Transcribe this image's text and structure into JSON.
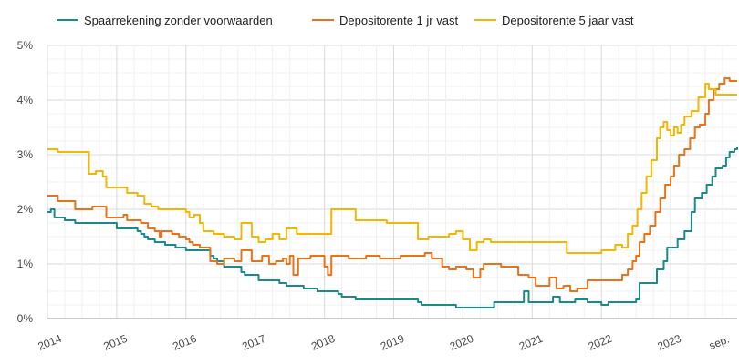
{
  "chart_data": {
    "type": "line",
    "title": "",
    "xlabel": "",
    "ylabel": "",
    "ylim": [
      0,
      5
    ],
    "yticks": [
      "0%",
      "1%",
      "2%",
      "3%",
      "4%",
      "5%"
    ],
    "xtick_labels": [
      "2014",
      "2015",
      "2016",
      "2017",
      "2018",
      "2019",
      "2020",
      "2021",
      "2022",
      "2023",
      "sep."
    ],
    "grid": true,
    "legend_position": "top",
    "series": [
      {
        "name": "Spaarrekening zonder  voorwaarden",
        "color": "#1a8a8a",
        "points": [
          [
            2014.0,
            1.95
          ],
          [
            2014.05,
            2.0
          ],
          [
            2014.1,
            1.85
          ],
          [
            2014.25,
            1.8
          ],
          [
            2014.4,
            1.75
          ],
          [
            2014.8,
            1.75
          ],
          [
            2015.0,
            1.65
          ],
          [
            2015.2,
            1.65
          ],
          [
            2015.3,
            1.6
          ],
          [
            2015.35,
            1.55
          ],
          [
            2015.4,
            1.5
          ],
          [
            2015.45,
            1.45
          ],
          [
            2015.55,
            1.4
          ],
          [
            2015.7,
            1.35
          ],
          [
            2015.85,
            1.3
          ],
          [
            2016.0,
            1.25
          ],
          [
            2016.25,
            1.25
          ],
          [
            2016.35,
            1.15
          ],
          [
            2016.4,
            1.1
          ],
          [
            2016.45,
            1.05
          ],
          [
            2016.55,
            0.95
          ],
          [
            2016.75,
            0.95
          ],
          [
            2016.8,
            0.85
          ],
          [
            2016.85,
            0.8
          ],
          [
            2017.0,
            0.8
          ],
          [
            2017.05,
            0.7
          ],
          [
            2017.3,
            0.7
          ],
          [
            2017.35,
            0.65
          ],
          [
            2017.45,
            0.6
          ],
          [
            2017.7,
            0.55
          ],
          [
            2017.8,
            0.55
          ],
          [
            2017.9,
            0.5
          ],
          [
            2018.1,
            0.5
          ],
          [
            2018.2,
            0.45
          ],
          [
            2018.25,
            0.4
          ],
          [
            2018.45,
            0.35
          ],
          [
            2018.7,
            0.35
          ],
          [
            2019.0,
            0.35
          ],
          [
            2019.35,
            0.3
          ],
          [
            2019.4,
            0.25
          ],
          [
            2019.8,
            0.25
          ],
          [
            2019.9,
            0.2
          ],
          [
            2020.4,
            0.2
          ],
          [
            2020.45,
            0.3
          ],
          [
            2020.8,
            0.3
          ],
          [
            2020.88,
            0.5
          ],
          [
            2020.95,
            0.3
          ],
          [
            2021.2,
            0.3
          ],
          [
            2021.3,
            0.4
          ],
          [
            2021.4,
            0.3
          ],
          [
            2021.55,
            0.3
          ],
          [
            2021.62,
            0.35
          ],
          [
            2021.8,
            0.3
          ],
          [
            2022.0,
            0.25
          ],
          [
            2022.1,
            0.3
          ],
          [
            2022.3,
            0.3
          ],
          [
            2022.5,
            0.35
          ],
          [
            2022.55,
            0.65
          ],
          [
            2022.75,
            0.65
          ],
          [
            2022.8,
            0.9
          ],
          [
            2022.9,
            1.05
          ],
          [
            2022.95,
            1.3
          ],
          [
            2023.05,
            1.3
          ],
          [
            2023.1,
            1.45
          ],
          [
            2023.2,
            1.6
          ],
          [
            2023.3,
            1.95
          ],
          [
            2023.35,
            2.2
          ],
          [
            2023.45,
            2.3
          ],
          [
            2023.52,
            2.45
          ],
          [
            2023.6,
            2.6
          ],
          [
            2023.65,
            2.75
          ],
          [
            2023.75,
            2.8
          ],
          [
            2023.8,
            2.95
          ],
          [
            2023.85,
            3.05
          ],
          [
            2023.92,
            3.1
          ],
          [
            2023.96,
            3.15
          ]
        ]
      },
      {
        "name": "Depositorente 1 jr vast",
        "color": "#e8731a",
        "points": [
          [
            2014.0,
            2.25
          ],
          [
            2014.1,
            2.25
          ],
          [
            2014.15,
            2.15
          ],
          [
            2014.35,
            2.15
          ],
          [
            2014.4,
            2.0
          ],
          [
            2014.55,
            2.0
          ],
          [
            2014.65,
            2.05
          ],
          [
            2014.82,
            2.05
          ],
          [
            2014.85,
            1.85
          ],
          [
            2015.05,
            1.85
          ],
          [
            2015.1,
            1.9
          ],
          [
            2015.15,
            1.8
          ],
          [
            2015.35,
            1.75
          ],
          [
            2015.45,
            1.65
          ],
          [
            2015.55,
            1.6
          ],
          [
            2015.62,
            1.5
          ],
          [
            2015.65,
            1.6
          ],
          [
            2015.8,
            1.55
          ],
          [
            2015.9,
            1.5
          ],
          [
            2016.0,
            1.45
          ],
          [
            2016.05,
            1.4
          ],
          [
            2016.1,
            1.35
          ],
          [
            2016.2,
            1.3
          ],
          [
            2016.35,
            1.05
          ],
          [
            2016.45,
            1.0
          ],
          [
            2016.55,
            1.1
          ],
          [
            2016.7,
            1.05
          ],
          [
            2016.8,
            1.25
          ],
          [
            2016.95,
            1.05
          ],
          [
            2017.1,
            1.15
          ],
          [
            2017.2,
            1.0
          ],
          [
            2017.3,
            1.05
          ],
          [
            2017.4,
            1.1
          ],
          [
            2017.45,
            1.0
          ],
          [
            2017.5,
            1.15
          ],
          [
            2017.55,
            0.8
          ],
          [
            2017.62,
            1.1
          ],
          [
            2017.8,
            1.15
          ],
          [
            2018.0,
            0.95
          ],
          [
            2018.05,
            0.8
          ],
          [
            2018.1,
            1.15
          ],
          [
            2018.35,
            1.1
          ],
          [
            2018.6,
            1.15
          ],
          [
            2018.8,
            1.1
          ],
          [
            2019.0,
            1.1
          ],
          [
            2019.1,
            1.15
          ],
          [
            2019.45,
            1.2
          ],
          [
            2019.55,
            1.1
          ],
          [
            2019.7,
            0.95
          ],
          [
            2019.8,
            0.9
          ],
          [
            2019.9,
            0.95
          ],
          [
            2020.05,
            0.9
          ],
          [
            2020.15,
            0.75
          ],
          [
            2020.25,
            0.9
          ],
          [
            2020.3,
            1.0
          ],
          [
            2020.45,
            1.0
          ],
          [
            2020.55,
            0.95
          ],
          [
            2020.8,
            0.8
          ],
          [
            2020.95,
            0.75
          ],
          [
            2021.05,
            0.6
          ],
          [
            2021.15,
            0.6
          ],
          [
            2021.25,
            0.75
          ],
          [
            2021.35,
            0.55
          ],
          [
            2021.45,
            0.6
          ],
          [
            2021.55,
            0.5
          ],
          [
            2021.65,
            0.55
          ],
          [
            2021.8,
            0.7
          ],
          [
            2022.25,
            0.7
          ],
          [
            2022.3,
            0.8
          ],
          [
            2022.38,
            0.9
          ],
          [
            2022.45,
            1.05
          ],
          [
            2022.5,
            1.15
          ],
          [
            2022.55,
            1.4
          ],
          [
            2022.62,
            1.55
          ],
          [
            2022.7,
            1.7
          ],
          [
            2022.78,
            1.95
          ],
          [
            2022.85,
            2.2
          ],
          [
            2022.92,
            2.45
          ],
          [
            2023.0,
            2.6
          ],
          [
            2023.05,
            2.8
          ],
          [
            2023.12,
            3.0
          ],
          [
            2023.2,
            3.1
          ],
          [
            2023.28,
            3.3
          ],
          [
            2023.35,
            3.5
          ],
          [
            2023.42,
            3.55
          ],
          [
            2023.5,
            3.75
          ],
          [
            2023.55,
            4.0
          ],
          [
            2023.62,
            4.2
          ],
          [
            2023.7,
            4.3
          ],
          [
            2023.78,
            4.4
          ],
          [
            2023.85,
            4.35
          ],
          [
            2023.96,
            4.35
          ]
        ]
      },
      {
        "name": "Depositorente 5 jaar vast",
        "color": "#f2b705",
        "points": [
          [
            2014.0,
            3.1
          ],
          [
            2014.1,
            3.1
          ],
          [
            2014.15,
            3.05
          ],
          [
            2014.35,
            3.05
          ],
          [
            2014.55,
            3.05
          ],
          [
            2014.6,
            2.65
          ],
          [
            2014.7,
            2.7
          ],
          [
            2014.8,
            2.6
          ],
          [
            2014.85,
            2.4
          ],
          [
            2015.05,
            2.4
          ],
          [
            2015.15,
            2.3
          ],
          [
            2015.3,
            2.25
          ],
          [
            2015.4,
            2.1
          ],
          [
            2015.5,
            2.05
          ],
          [
            2015.6,
            2.0
          ],
          [
            2015.75,
            2.0
          ],
          [
            2015.9,
            2.0
          ],
          [
            2016.0,
            1.95
          ],
          [
            2016.05,
            1.85
          ],
          [
            2016.12,
            1.9
          ],
          [
            2016.2,
            1.75
          ],
          [
            2016.25,
            1.6
          ],
          [
            2016.4,
            1.55
          ],
          [
            2016.55,
            1.5
          ],
          [
            2016.7,
            1.45
          ],
          [
            2016.8,
            1.75
          ],
          [
            2016.95,
            1.5
          ],
          [
            2017.05,
            1.4
          ],
          [
            2017.15,
            1.45
          ],
          [
            2017.25,
            1.55
          ],
          [
            2017.35,
            1.45
          ],
          [
            2017.45,
            1.65
          ],
          [
            2017.6,
            1.55
          ],
          [
            2017.8,
            1.55
          ],
          [
            2018.0,
            1.55
          ],
          [
            2018.1,
            2.0
          ],
          [
            2018.3,
            2.0
          ],
          [
            2018.45,
            1.8
          ],
          [
            2018.6,
            1.8
          ],
          [
            2018.9,
            1.75
          ],
          [
            2019.15,
            1.75
          ],
          [
            2019.35,
            1.45
          ],
          [
            2019.5,
            1.5
          ],
          [
            2019.7,
            1.5
          ],
          [
            2019.8,
            1.55
          ],
          [
            2019.9,
            1.6
          ],
          [
            2020.0,
            1.45
          ],
          [
            2020.1,
            1.25
          ],
          [
            2020.2,
            1.4
          ],
          [
            2020.3,
            1.45
          ],
          [
            2020.4,
            1.4
          ],
          [
            2020.6,
            1.4
          ],
          [
            2020.8,
            1.4
          ],
          [
            2021.0,
            1.4
          ],
          [
            2021.3,
            1.4
          ],
          [
            2021.5,
            1.2
          ],
          [
            2021.7,
            1.2
          ],
          [
            2022.0,
            1.25
          ],
          [
            2022.2,
            1.35
          ],
          [
            2022.3,
            1.3
          ],
          [
            2022.38,
            1.55
          ],
          [
            2022.45,
            1.7
          ],
          [
            2022.52,
            2.0
          ],
          [
            2022.58,
            2.3
          ],
          [
            2022.65,
            2.6
          ],
          [
            2022.72,
            2.9
          ],
          [
            2022.8,
            3.3
          ],
          [
            2022.85,
            3.5
          ],
          [
            2022.9,
            3.6
          ],
          [
            2022.95,
            3.45
          ],
          [
            2023.0,
            3.35
          ],
          [
            2023.05,
            3.5
          ],
          [
            2023.1,
            3.4
          ],
          [
            2023.15,
            3.55
          ],
          [
            2023.2,
            3.7
          ],
          [
            2023.3,
            3.8
          ],
          [
            2023.4,
            4.05
          ],
          [
            2023.5,
            4.3
          ],
          [
            2023.55,
            4.2
          ],
          [
            2023.65,
            4.1
          ],
          [
            2023.96,
            4.1
          ]
        ]
      }
    ]
  }
}
